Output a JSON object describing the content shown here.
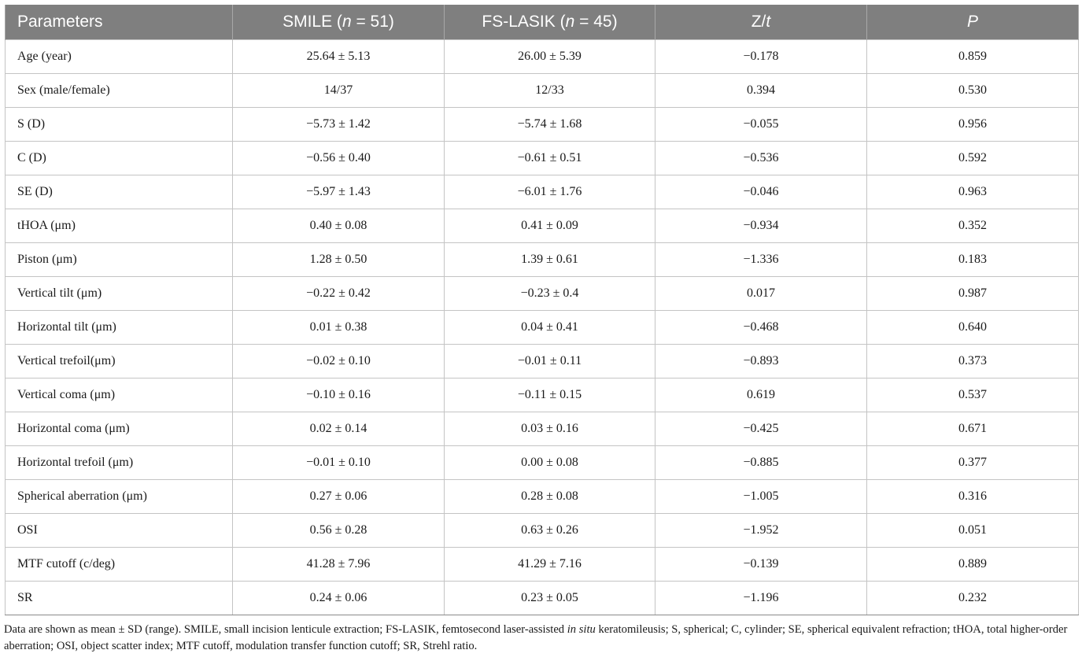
{
  "table": {
    "headers": [
      {
        "pre": "Parameters",
        "ital": "",
        "post": ""
      },
      {
        "pre": "SMILE (",
        "ital": "n",
        "post": " = 51)"
      },
      {
        "pre": "FS-LASIK (",
        "ital": "n",
        "post": " = 45)"
      },
      {
        "pre": "Z/",
        "ital": "t",
        "post": ""
      },
      {
        "pre": "",
        "ital": "P",
        "post": ""
      }
    ],
    "rows": [
      [
        "Age (year)",
        "25.64 ± 5.13",
        "26.00 ± 5.39",
        "−0.178",
        "0.859"
      ],
      [
        "Sex (male/female)",
        "14/37",
        "12/33",
        "0.394",
        "0.530"
      ],
      [
        "S (D)",
        "−5.73 ± 1.42",
        "−5.74 ± 1.68",
        "−0.055",
        "0.956"
      ],
      [
        "C (D)",
        "−0.56 ± 0.40",
        "−0.61 ± 0.51",
        "−0.536",
        "0.592"
      ],
      [
        "SE (D)",
        "−5.97 ± 1.43",
        "−6.01 ± 1.76",
        "−0.046",
        "0.963"
      ],
      [
        "tHOA (μm)",
        "0.40 ± 0.08",
        "0.41 ± 0.09",
        "−0.934",
        "0.352"
      ],
      [
        "Piston (μm)",
        "1.28 ± 0.50",
        "1.39 ± 0.61",
        "−1.336",
        "0.183"
      ],
      [
        "Vertical tilt (μm)",
        "−0.22 ± 0.42",
        "−0.23 ± 0.4",
        "0.017",
        "0.987"
      ],
      [
        "Horizontal tilt (μm)",
        "0.01 ± 0.38",
        "0.04 ± 0.41",
        "−0.468",
        "0.640"
      ],
      [
        "Vertical trefoil(μm)",
        "−0.02 ± 0.10",
        "−0.01 ± 0.11",
        "−0.893",
        "0.373"
      ],
      [
        "Vertical coma (μm)",
        "−0.10 ± 0.16",
        "−0.11 ± 0.15",
        "0.619",
        "0.537"
      ],
      [
        "Horizontal coma (μm)",
        "0.02 ± 0.14",
        "0.03 ± 0.16",
        "−0.425",
        "0.671"
      ],
      [
        "Horizontal trefoil (μm)",
        "−0.01 ± 0.10",
        "0.00 ± 0.08",
        "−0.885",
        "0.377"
      ],
      [
        "Spherical aberration (μm)",
        "0.27 ± 0.06",
        "0.28 ± 0.08",
        "−1.005",
        "0.316"
      ],
      [
        "OSI",
        "0.56 ± 0.28",
        "0.63 ± 0.26",
        "−1.952",
        "0.051"
      ],
      [
        "MTF cutoff (c/deg)",
        "41.28 ± 7.96",
        "41.29 ± 7.16",
        "−0.139",
        "0.889"
      ],
      [
        "SR",
        "0.24 ± 0.06",
        "0.23 ± 0.05",
        "−1.196",
        "0.232"
      ]
    ]
  },
  "footnote": {
    "part1": "Data are shown as mean ± SD (range). SMILE, small incision lenticule extraction; FS-LASIK, femtosecond laser-assisted ",
    "italic": "in situ",
    "part2": " keratomileusis; S, spherical; C, cylinder; SE, spherical equivalent refraction; tHOA, total higher-order aberration; OSI, object scatter index; MTF cutoff, modulation transfer function cutoff; SR, Strehl ratio."
  }
}
